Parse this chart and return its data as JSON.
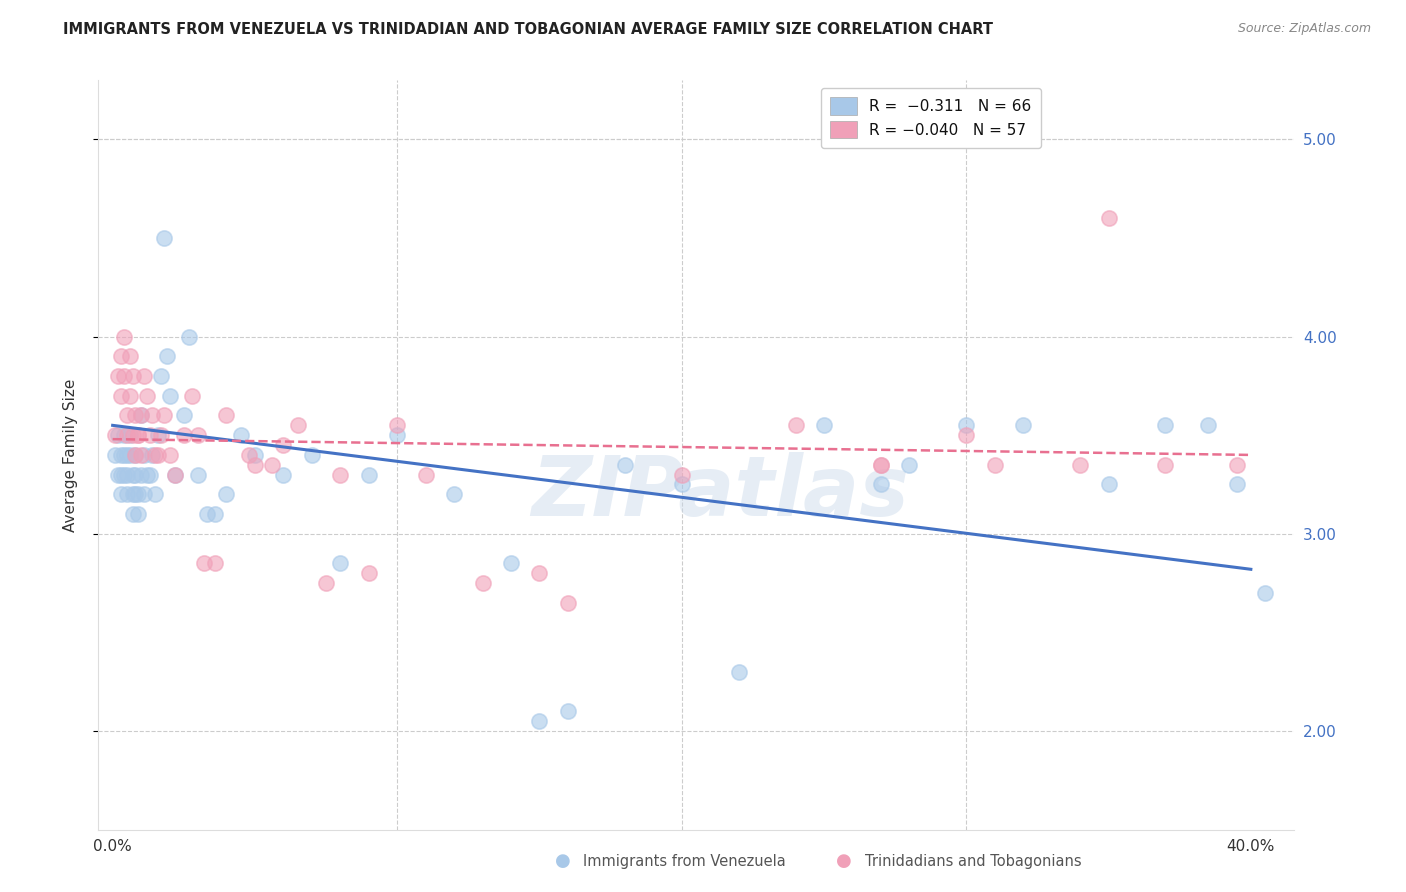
{
  "title": "IMMIGRANTS FROM VENEZUELA VS TRINIDADIAN AND TOBAGONIAN AVERAGE FAMILY SIZE CORRELATION CHART",
  "source": "Source: ZipAtlas.com",
  "ylabel": "Average Family Size",
  "ylim": [
    1.5,
    5.3
  ],
  "xlim": [
    -0.005,
    0.415
  ],
  "yticks_right": [
    2.0,
    3.0,
    4.0,
    5.0
  ],
  "blue_color": "#A8C8E8",
  "pink_color": "#F0A0B8",
  "blue_line_color": "#4472C4",
  "pink_line_color": "#E87090",
  "legend_r_blue": "R =  −0.311",
  "legend_n_blue": "N = 66",
  "legend_r_pink": "R = −0.040",
  "legend_n_pink": "N = 57",
  "watermark": "ZIPatlas",
  "blue_trend_x": [
    0.0,
    0.4
  ],
  "blue_trend_y": [
    3.55,
    2.82
  ],
  "pink_trend_x": [
    0.0,
    0.4
  ],
  "pink_trend_y": [
    3.48,
    3.4
  ],
  "blue_scatter_x": [
    0.001,
    0.002,
    0.002,
    0.003,
    0.003,
    0.003,
    0.004,
    0.004,
    0.004,
    0.005,
    0.005,
    0.005,
    0.006,
    0.006,
    0.007,
    0.007,
    0.007,
    0.008,
    0.008,
    0.008,
    0.009,
    0.009,
    0.01,
    0.01,
    0.011,
    0.011,
    0.012,
    0.013,
    0.014,
    0.015,
    0.016,
    0.017,
    0.018,
    0.019,
    0.02,
    0.022,
    0.025,
    0.027,
    0.03,
    0.033,
    0.036,
    0.04,
    0.045,
    0.05,
    0.06,
    0.07,
    0.08,
    0.09,
    0.1,
    0.12,
    0.14,
    0.16,
    0.18,
    0.2,
    0.22,
    0.25,
    0.27,
    0.3,
    0.32,
    0.35,
    0.37,
    0.385,
    0.395,
    0.405,
    0.28,
    0.15
  ],
  "blue_scatter_y": [
    3.4,
    3.3,
    3.5,
    3.3,
    3.2,
    3.4,
    3.5,
    3.4,
    3.3,
    3.3,
    3.4,
    3.2,
    3.5,
    3.4,
    3.2,
    3.3,
    3.1,
    3.4,
    3.2,
    3.3,
    3.1,
    3.2,
    3.6,
    3.3,
    3.4,
    3.2,
    3.3,
    3.3,
    3.4,
    3.2,
    3.5,
    3.8,
    4.5,
    3.9,
    3.7,
    3.3,
    3.6,
    4.0,
    3.3,
    3.1,
    3.1,
    3.2,
    3.5,
    3.4,
    3.3,
    3.4,
    2.85,
    3.3,
    3.5,
    3.2,
    2.85,
    2.1,
    3.35,
    3.25,
    2.3,
    3.55,
    3.25,
    3.55,
    3.55,
    3.25,
    3.55,
    3.55,
    3.25,
    2.7,
    3.35,
    2.05
  ],
  "pink_scatter_x": [
    0.001,
    0.002,
    0.003,
    0.003,
    0.004,
    0.004,
    0.005,
    0.005,
    0.006,
    0.006,
    0.007,
    0.007,
    0.008,
    0.008,
    0.009,
    0.009,
    0.01,
    0.01,
    0.011,
    0.012,
    0.013,
    0.014,
    0.015,
    0.016,
    0.017,
    0.018,
    0.02,
    0.022,
    0.025,
    0.028,
    0.032,
    0.036,
    0.04,
    0.048,
    0.056,
    0.065,
    0.075,
    0.09,
    0.11,
    0.13,
    0.16,
    0.2,
    0.24,
    0.27,
    0.3,
    0.34,
    0.37,
    0.395,
    0.27,
    0.31,
    0.35,
    0.06,
    0.08,
    0.1,
    0.15,
    0.05,
    0.03
  ],
  "pink_scatter_y": [
    3.5,
    3.8,
    3.9,
    3.7,
    3.8,
    4.0,
    3.6,
    3.5,
    3.9,
    3.7,
    3.8,
    3.5,
    3.6,
    3.4,
    3.5,
    3.5,
    3.4,
    3.6,
    3.8,
    3.7,
    3.5,
    3.6,
    3.4,
    3.4,
    3.5,
    3.6,
    3.4,
    3.3,
    3.5,
    3.7,
    2.85,
    2.85,
    3.6,
    3.4,
    3.35,
    3.55,
    2.75,
    2.8,
    3.3,
    2.75,
    2.65,
    3.3,
    3.55,
    3.35,
    3.5,
    3.35,
    3.35,
    3.35,
    3.35,
    3.35,
    4.6,
    3.45,
    3.3,
    3.55,
    2.8,
    3.35,
    3.5
  ]
}
